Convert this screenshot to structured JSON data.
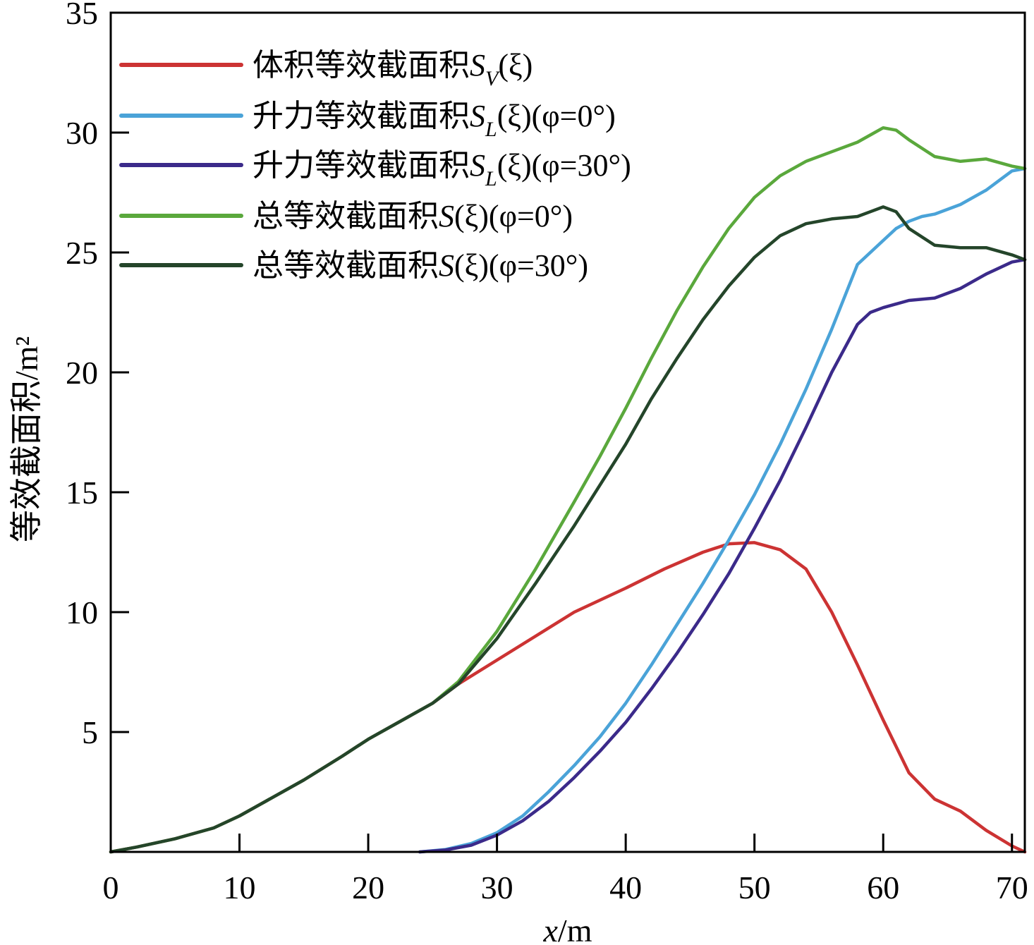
{
  "chart_data": {
    "type": "line",
    "title": "",
    "xlabel": "x/m",
    "ylabel": "等效截面积/m²",
    "xlim": [
      0,
      71
    ],
    "ylim": [
      0,
      35
    ],
    "xticks": [
      0,
      10,
      20,
      30,
      40,
      50,
      60,
      70
    ],
    "yticks": [
      5,
      10,
      15,
      20,
      25,
      30,
      35
    ],
    "legend_position": "top-left",
    "series": [
      {
        "name": "体积等效截面积S_V(ξ)",
        "color": "#cc3333",
        "x": [
          0,
          2,
          5,
          8,
          10,
          12,
          15,
          18,
          20,
          23,
          25,
          27,
          30,
          33,
          36,
          40,
          43,
          46,
          48,
          50,
          52,
          54,
          56,
          58,
          60,
          62,
          64,
          66,
          68,
          70,
          71
        ],
        "y": [
          0,
          0.2,
          0.55,
          1.0,
          1.5,
          2.1,
          3.0,
          4.0,
          4.7,
          5.6,
          6.2,
          7.0,
          8.0,
          9.0,
          10.0,
          11.0,
          11.8,
          12.5,
          12.85,
          12.9,
          12.6,
          11.8,
          10.0,
          7.8,
          5.5,
          3.3,
          2.2,
          1.7,
          0.9,
          0.25,
          0
        ]
      },
      {
        "name": "升力等效截面积S_L(ξ)(φ=0°)",
        "color": "#4aa3d8",
        "x": [
          24,
          26,
          28,
          30,
          32,
          34,
          36,
          38,
          40,
          42,
          44,
          46,
          48,
          50,
          52,
          54,
          56,
          58,
          60,
          61,
          62,
          63,
          64,
          66,
          68,
          70,
          71
        ],
        "y": [
          0,
          0.1,
          0.35,
          0.8,
          1.5,
          2.5,
          3.6,
          4.8,
          6.2,
          7.8,
          9.5,
          11.2,
          13.0,
          14.9,
          17.0,
          19.3,
          21.8,
          24.5,
          25.5,
          26.0,
          26.3,
          26.5,
          26.6,
          27.0,
          27.6,
          28.4,
          28.5
        ]
      },
      {
        "name": "升力等效截面积S_L(ξ)(φ=30°)",
        "color": "#3b2a8a",
        "x": [
          24,
          26,
          28,
          30,
          32,
          34,
          36,
          38,
          40,
          42,
          44,
          46,
          48,
          50,
          52,
          54,
          56,
          58,
          59,
          60,
          61,
          62,
          64,
          66,
          68,
          70,
          71
        ],
        "y": [
          0,
          0.08,
          0.28,
          0.7,
          1.3,
          2.1,
          3.1,
          4.2,
          5.4,
          6.8,
          8.3,
          9.9,
          11.6,
          13.5,
          15.5,
          17.7,
          20.0,
          22.0,
          22.5,
          22.7,
          22.85,
          23.0,
          23.1,
          23.5,
          24.1,
          24.6,
          24.7
        ]
      },
      {
        "name": "总等效截面积S(ξ)(φ=0°)",
        "color": "#5aa83c",
        "x": [
          0,
          2,
          5,
          8,
          10,
          12,
          15,
          18,
          20,
          23,
          25,
          27,
          30,
          33,
          36,
          38,
          40,
          42,
          44,
          46,
          48,
          50,
          52,
          54,
          56,
          58,
          59,
          60,
          61,
          62,
          64,
          66,
          68,
          70,
          71
        ],
        "y": [
          0,
          0.2,
          0.55,
          1.0,
          1.5,
          2.1,
          3.0,
          4.0,
          4.7,
          5.6,
          6.2,
          7.1,
          9.2,
          11.8,
          14.6,
          16.5,
          18.5,
          20.6,
          22.6,
          24.4,
          26.0,
          27.3,
          28.2,
          28.8,
          29.2,
          29.6,
          29.9,
          30.2,
          30.1,
          29.7,
          29.0,
          28.8,
          28.9,
          28.6,
          28.5
        ]
      },
      {
        "name": "总等效截面积S(ξ)(φ=30°)",
        "color": "#24452a",
        "x": [
          0,
          2,
          5,
          8,
          10,
          12,
          15,
          18,
          20,
          23,
          25,
          27,
          30,
          33,
          36,
          38,
          40,
          42,
          44,
          46,
          48,
          50,
          52,
          54,
          56,
          58,
          59,
          60,
          61,
          62,
          64,
          66,
          68,
          70,
          71
        ],
        "y": [
          0,
          0.2,
          0.55,
          1.0,
          1.5,
          2.1,
          3.0,
          4.0,
          4.7,
          5.6,
          6.2,
          7.0,
          8.9,
          11.2,
          13.6,
          15.3,
          17.0,
          18.9,
          20.6,
          22.2,
          23.6,
          24.8,
          25.7,
          26.2,
          26.4,
          26.5,
          26.7,
          26.9,
          26.7,
          26.0,
          25.3,
          25.2,
          25.2,
          24.9,
          24.7
        ]
      }
    ],
    "legend": [
      {
        "label": "体积等效截面积",
        "symbol": "S",
        "sub": "V",
        "suffix": "(ξ)"
      },
      {
        "label": "升力等效截面积",
        "symbol": "S",
        "sub": "L",
        "suffix": "(ξ)(φ=0°)"
      },
      {
        "label": "升力等效截面积",
        "symbol": "S",
        "sub": "L",
        "suffix": "(ξ)(φ=30°)"
      },
      {
        "label": "总等效截面积",
        "symbol": "S",
        "sub": "",
        "suffix": "(ξ)(φ=0°)"
      },
      {
        "label": "总等效截面积",
        "symbol": "S",
        "sub": "",
        "suffix": "(ξ)(φ=30°)"
      }
    ]
  }
}
